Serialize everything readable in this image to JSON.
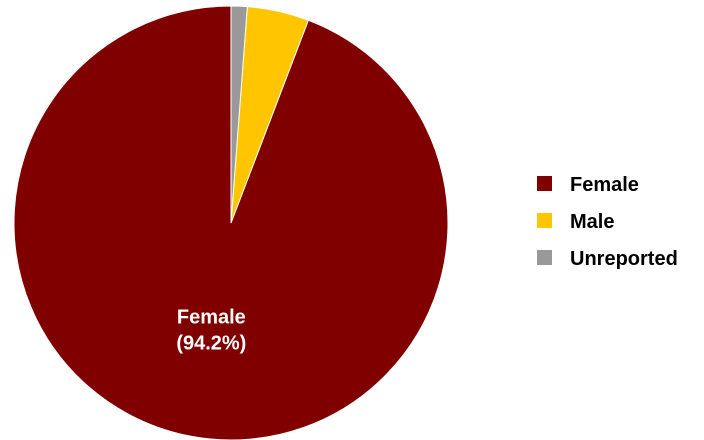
{
  "chart_data": {
    "type": "pie",
    "categories": [
      "Female",
      "Male",
      "Unreported"
    ],
    "values": [
      94.2,
      4.6,
      1.2
    ],
    "colors": [
      "#800000",
      "#FFC600",
      "#999999"
    ],
    "data_labels": [
      {
        "category": "Female",
        "name": "Female",
        "value_text": "(94.2%)"
      }
    ],
    "legend": {
      "placement": "right",
      "entries": [
        "Female",
        "Male",
        "Unreported"
      ]
    },
    "start": "top",
    "direction": "counterclockwise"
  }
}
